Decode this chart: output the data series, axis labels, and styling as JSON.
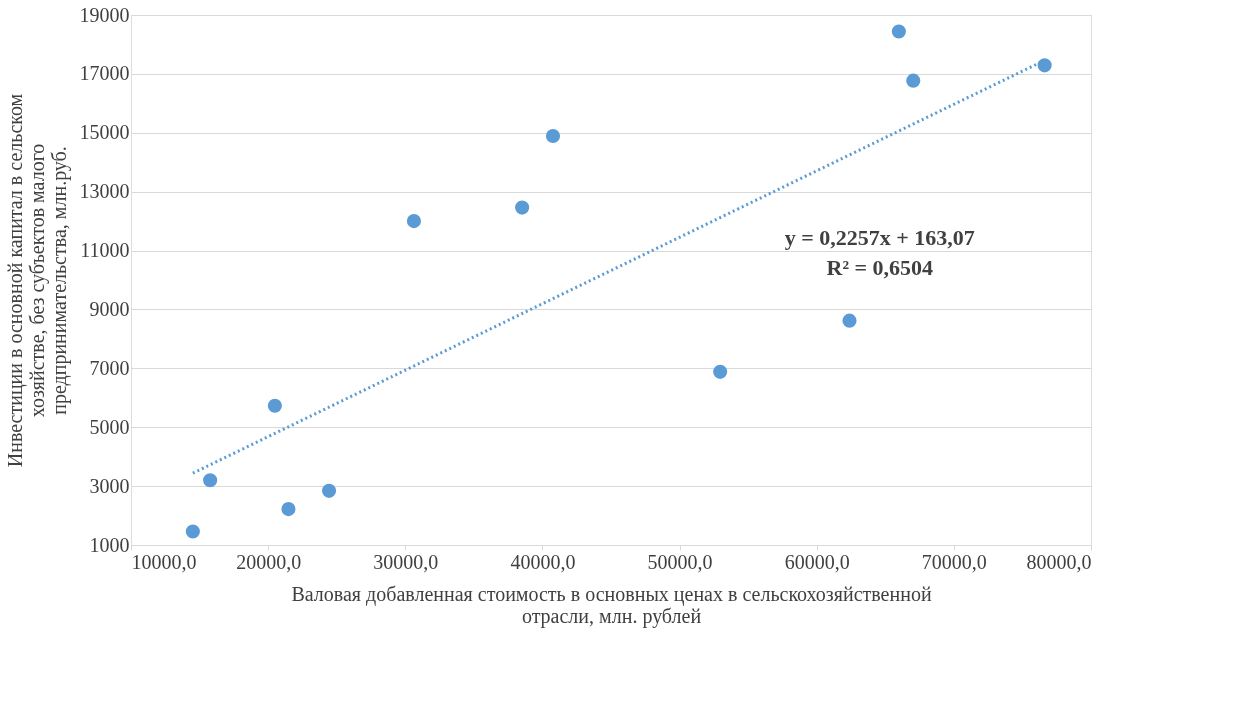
{
  "chart_data": {
    "type": "scatter",
    "xlabel": "Валовая добавленная стоимость в основных ценах в сельскохозяйственной отрасли, млн. рублей",
    "ylabel": "Инвестиции в основной капитал в сельском хозяйстве, без субъектов малого предпринимательства, млн.руб.",
    "series": [
      {
        "color": "#5b9bd5",
        "marker": "circle",
        "x": [
          14510,
          15770,
          20490,
          21480,
          24440,
          30630,
          38520,
          40770,
          52960,
          62390,
          65990,
          67040,
          76620
        ],
        "values": [
          1460,
          3200,
          5730,
          2220,
          2840,
          12000,
          12460,
          14890,
          6880,
          8620,
          18440,
          16770,
          17290
        ]
      },
      {
        "type": "line",
        "color": "#5b9bd5",
        "line_style": "dotted",
        "x": [
          14510,
          76620
        ],
        "values": [
          3440,
          17460
        ]
      }
    ],
    "annotations": [
      "y = 0,2257x + 163,07",
      "R² = 0,6504"
    ],
    "xlim": [
      10000,
      80000
    ],
    "xticks": [
      {
        "value": 10000,
        "label": "10000,0"
      },
      {
        "value": 20000,
        "label": "20000,0"
      },
      {
        "value": 30000,
        "label": "30000,0"
      },
      {
        "value": 40000,
        "label": "40000,0"
      },
      {
        "value": 50000,
        "label": "50000,0"
      },
      {
        "value": 60000,
        "label": "60000,0"
      },
      {
        "value": 70000,
        "label": "70000,0"
      },
      {
        "value": 80000,
        "label": "80000,0"
      }
    ],
    "ylim": [
      1000,
      19000
    ],
    "yticks": [
      1000,
      3000,
      5000,
      7000,
      9000,
      11000,
      13000,
      15000,
      17000,
      19000
    ],
    "grid": "y"
  }
}
